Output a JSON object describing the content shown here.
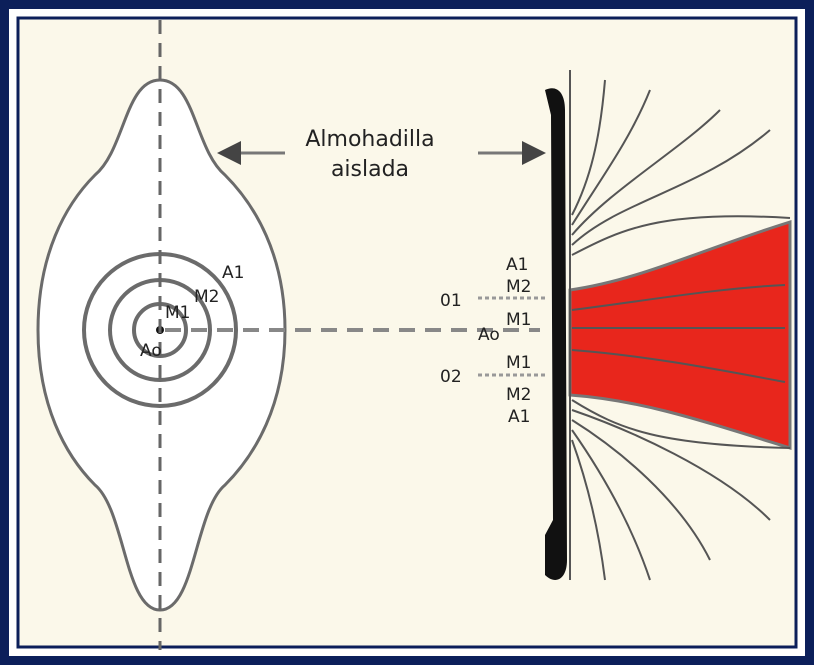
{
  "callout": {
    "line1": "Almohadilla",
    "line2": "aislada"
  },
  "left_labels": [
    "A1",
    "M2",
    "M1",
    "Ao"
  ],
  "right_labels": {
    "a1_top": "A1",
    "m2_top": "M2",
    "o1": "01",
    "m1_top": "M1",
    "ao": "Ao",
    "o2": "02",
    "m1_bottom": "M1",
    "m2_bottom": "M2",
    "a1_bottom": "A1"
  }
}
